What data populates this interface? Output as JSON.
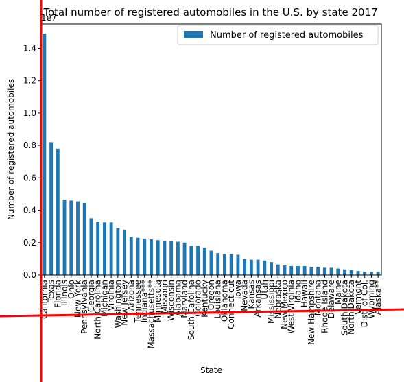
{
  "chart_data": {
    "type": "bar",
    "title": "Total number of registered automobiles in the U.S. by state 2017",
    "xlabel": "State",
    "ylabel": "Number of registered automobiles",
    "offset_label": "1e7",
    "ylim": [
      0,
      1.55
    ],
    "yticks": [
      "0.0",
      "0.2",
      "0.4",
      "0.6",
      "0.8",
      "1.0",
      "1.2",
      "1.4"
    ],
    "legend": {
      "position": "top-right",
      "entries": [
        "Number of registered automobiles"
      ]
    },
    "bar_color": "#1f77b4",
    "categories": [
      "California",
      "Texas",
      "Florida",
      "Illinois",
      "Ohio",
      "New York",
      "Pennsylvania",
      "Georgia",
      "North Carolina",
      "Michigan",
      "Virginia",
      "Washington",
      "New Jersey",
      "Arizona",
      "Tennessee",
      "Indiana***",
      "Massachusetts**",
      "Minnesota",
      "Missouri",
      "Wisconsin",
      "Alabama",
      "Maryland",
      "South Carolina",
      "Colorado",
      "Kentucky",
      "Oregon",
      "Louisiana",
      "Oklahoma",
      "Connecticut",
      "Iowa",
      "Nevada",
      "Kansas",
      "Arkansas",
      "Utah",
      "Mississippi",
      "Nebraska",
      "New Mexico",
      "West Virginia",
      "Idaho",
      "Hawaii",
      "New Hampshire",
      "Montana",
      "Rhode Island",
      "Delaware",
      "Maine",
      "South Dakota",
      "North Dakota",
      "Vermont",
      "Dist. of Col.",
      "Wyoming",
      "Alaska**"
    ],
    "series": [
      {
        "values": [
          1.49,
          0.82,
          0.78,
          0.465,
          0.46,
          0.455,
          0.445,
          0.35,
          0.33,
          0.325,
          0.325,
          0.29,
          0.28,
          0.235,
          0.23,
          0.225,
          0.22,
          0.215,
          0.21,
          0.21,
          0.205,
          0.2,
          0.18,
          0.18,
          0.17,
          0.15,
          0.135,
          0.13,
          0.13,
          0.125,
          0.1,
          0.095,
          0.095,
          0.09,
          0.08,
          0.065,
          0.06,
          0.055,
          0.055,
          0.055,
          0.05,
          0.05,
          0.045,
          0.045,
          0.04,
          0.035,
          0.03,
          0.025,
          0.02,
          0.02,
          0.02
        ]
      }
    ]
  }
}
